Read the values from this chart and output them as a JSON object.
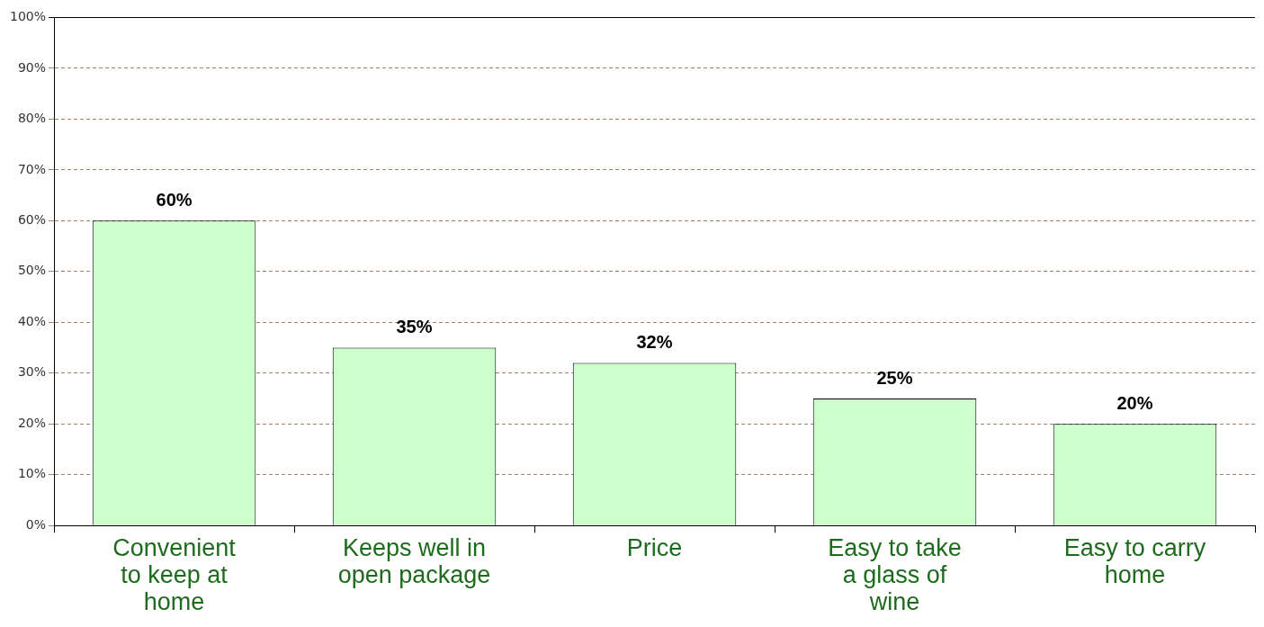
{
  "chart_data": {
    "type": "bar",
    "categories": [
      "Convenient\nto keep at\nhome",
      "Keeps well in\nopen package",
      "Price",
      "Easy to take\na glass of\nwine",
      "Easy to carry\nhome"
    ],
    "values": [
      60,
      35,
      32,
      25,
      20
    ],
    "color": "#ccffcc",
    "ylim": [
      0,
      100
    ],
    "yticks": [
      {
        "value": 0,
        "label": "0%"
      },
      {
        "value": 10,
        "label": "10%"
      },
      {
        "value": 20,
        "label": "20%"
      },
      {
        "value": 30,
        "label": "30%"
      },
      {
        "value": 40,
        "label": "40%"
      },
      {
        "value": 50,
        "label": "50%"
      },
      {
        "value": 60,
        "label": "60%"
      },
      {
        "value": 70,
        "label": "70%"
      },
      {
        "value": 80,
        "label": "80%"
      },
      {
        "value": 90,
        "label": "90%"
      },
      {
        "value": 100,
        "label": "100%"
      }
    ],
    "value_labels": [
      "60%",
      "35%",
      "32%",
      "25%",
      "20%"
    ],
    "grid": "y",
    "legend": false
  }
}
